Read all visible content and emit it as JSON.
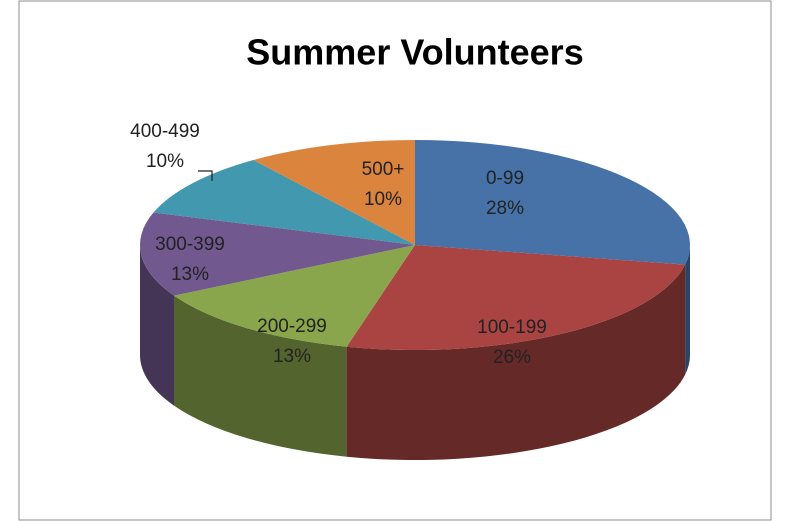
{
  "chart_data": {
    "type": "pie",
    "title": "Summer Volunteers",
    "categories": [
      "0-99",
      "100-199",
      "200-299",
      "300-399",
      "400-499",
      "500+"
    ],
    "values": [
      28,
      26,
      13,
      13,
      10,
      10
    ],
    "value_labels": [
      "28%",
      "26%",
      "13%",
      "13%",
      "10%",
      "10%"
    ],
    "colors": [
      "#4672a8",
      "#a94442",
      "#8aa64c",
      "#71588f",
      "#4198af",
      "#db843d"
    ]
  }
}
